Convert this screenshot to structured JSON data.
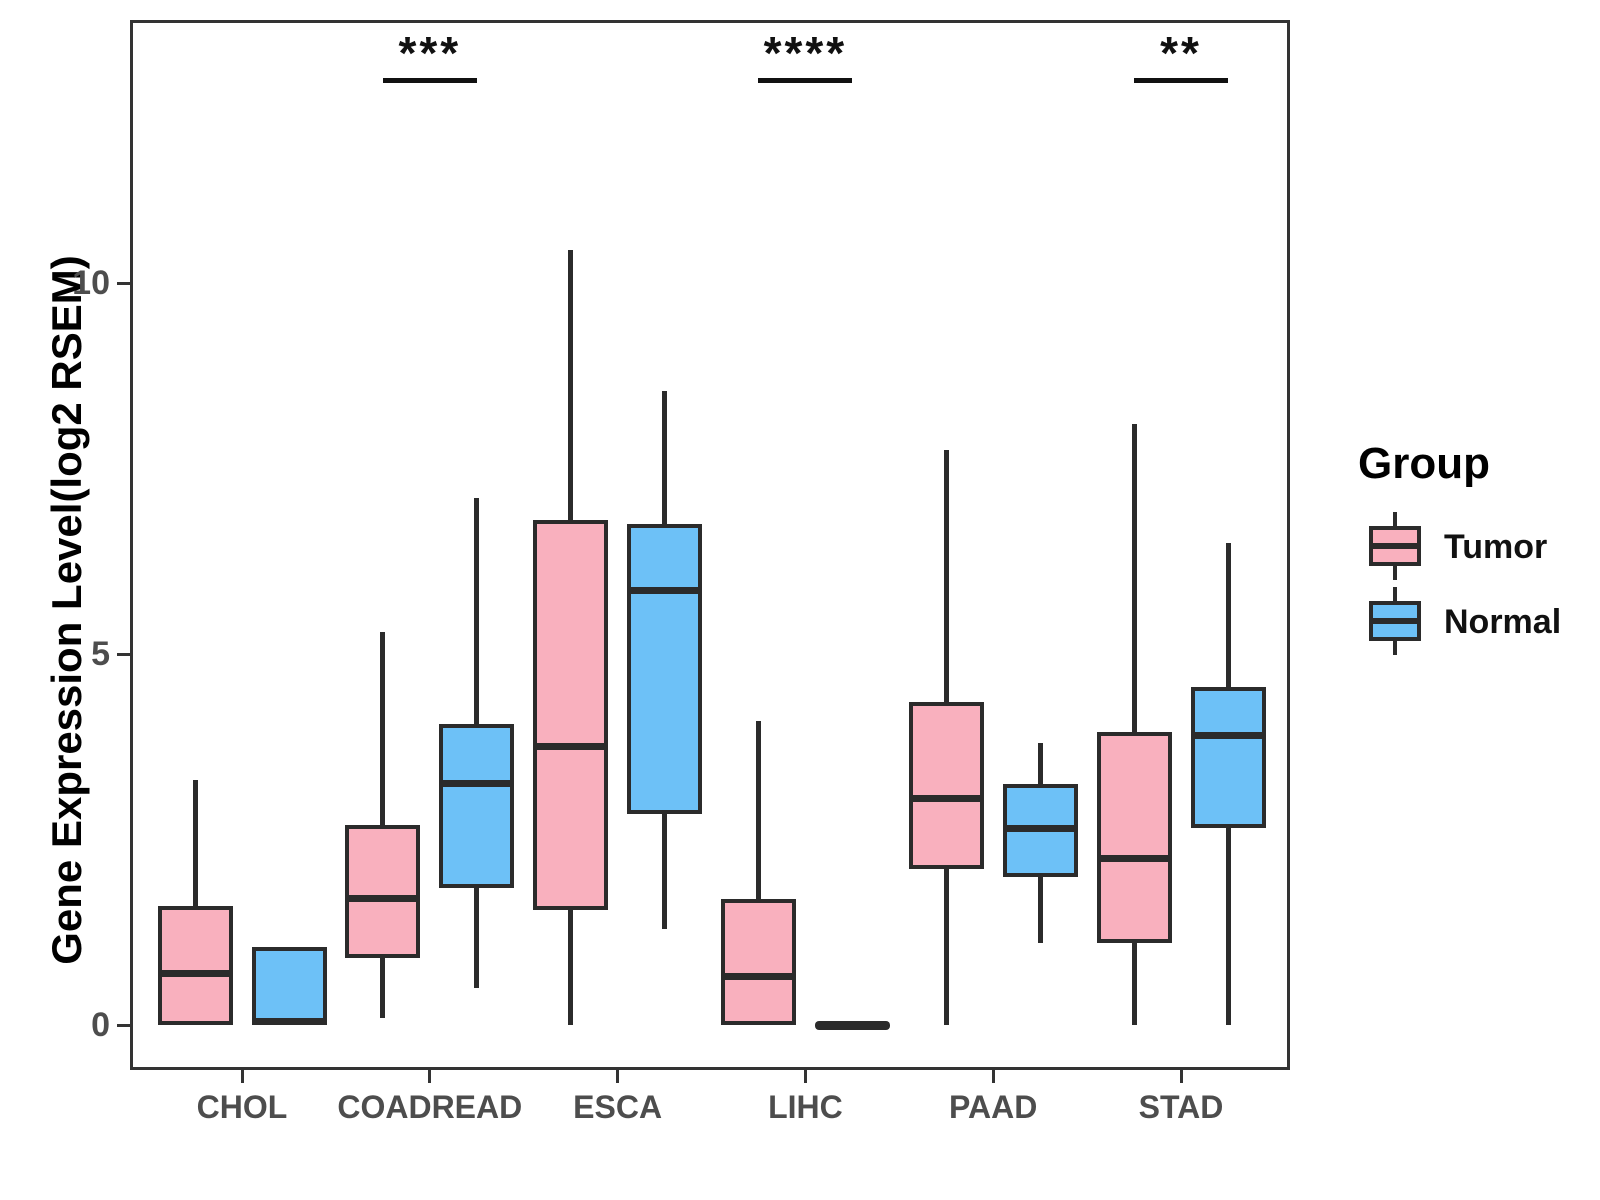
{
  "chart_data": {
    "type": "grouped_boxplot",
    "title": "",
    "ylabel": "Gene Expression Level(log2 RSEM)",
    "xlabel": "",
    "y_axis": {
      "ticks": [
        0,
        5,
        10
      ],
      "tick_labels": [
        "0",
        "5",
        "10"
      ],
      "range": [
        -0.6,
        13.5
      ],
      "grid": "off"
    },
    "categories": [
      "CHOL",
      "COADREAD",
      "ESCA",
      "LIHC",
      "PAAD",
      "STAD"
    ],
    "groups": [
      "Tumor",
      "Normal"
    ],
    "colors": {
      "tumor_fill": "#F9B0BE",
      "normal_fill": "#6DC1F7",
      "line": "#2b2b2b"
    },
    "boxes": [
      {
        "category": "CHOL",
        "group": "Tumor",
        "min": 0,
        "q1": 0,
        "median": 0.7,
        "q3": 1.6,
        "max": 3.3
      },
      {
        "category": "CHOL",
        "group": "Normal",
        "min": 0,
        "q1": 0,
        "median": 0.05,
        "q3": 1.05,
        "max": 1.05
      },
      {
        "category": "COADREAD",
        "group": "Tumor",
        "min": 0.1,
        "q1": 0.9,
        "median": 1.7,
        "q3": 2.7,
        "max": 5.3
      },
      {
        "category": "COADREAD",
        "group": "Normal",
        "min": 0.5,
        "q1": 1.85,
        "median": 3.25,
        "q3": 4.05,
        "max": 7.1
      },
      {
        "category": "ESCA",
        "group": "Tumor",
        "min": 0,
        "q1": 1.55,
        "median": 3.75,
        "q3": 6.8,
        "max": 10.45
      },
      {
        "category": "ESCA",
        "group": "Normal",
        "min": 1.3,
        "q1": 2.85,
        "median": 5.85,
        "q3": 6.75,
        "max": 8.55
      },
      {
        "category": "LIHC",
        "group": "Tumor",
        "min": 0,
        "q1": 0,
        "median": 0.65,
        "q3": 1.7,
        "max": 4.1
      },
      {
        "category": "LIHC",
        "group": "Normal",
        "min": 0,
        "q1": 0,
        "median": 0,
        "q3": 0,
        "max": 0
      },
      {
        "category": "PAAD",
        "group": "Tumor",
        "min": 0,
        "q1": 2.1,
        "median": 3.05,
        "q3": 4.35,
        "max": 7.75
      },
      {
        "category": "PAAD",
        "group": "Normal",
        "min": 1.1,
        "q1": 2.0,
        "median": 2.65,
        "q3": 3.25,
        "max": 3.8
      },
      {
        "category": "STAD",
        "group": "Tumor",
        "min": 0,
        "q1": 1.1,
        "median": 2.25,
        "q3": 3.95,
        "max": 8.1
      },
      {
        "category": "STAD",
        "group": "Normal",
        "min": 0,
        "q1": 2.65,
        "median": 3.9,
        "q3": 4.55,
        "max": 6.5
      }
    ],
    "significance": [
      {
        "category": "COADREAD",
        "label": "***"
      },
      {
        "category": "LIHC",
        "label": "****"
      },
      {
        "category": "STAD",
        "label": "**"
      }
    ],
    "legend": {
      "title": "Group",
      "entries": [
        {
          "label": "Tumor",
          "color": "#F9B0BE"
        },
        {
          "label": "Normal",
          "color": "#6DC1F7"
        }
      ],
      "position": "right"
    }
  }
}
